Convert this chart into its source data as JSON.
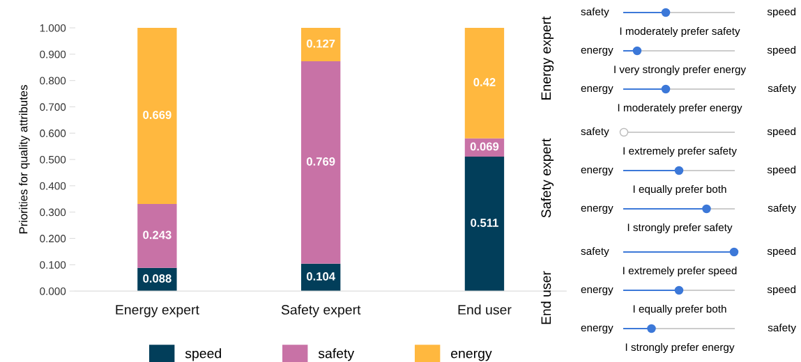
{
  "chart_data": [
    {
      "type": "bar",
      "stacked": true,
      "ylabel": "Priorities for quality attributes",
      "categories": [
        "Energy expert",
        "Safety expert",
        "End user"
      ],
      "series": [
        {
          "name": "speed",
          "color": "#023e5a",
          "values": [
            0.088,
            0.104,
            0.511
          ]
        },
        {
          "name": "safety",
          "color": "#c872a6",
          "values": [
            0.243,
            0.769,
            0.069
          ]
        },
        {
          "name": "energy",
          "color": "#ffb83f",
          "values": [
            0.669,
            0.127,
            0.42
          ]
        }
      ],
      "ylim": [
        0,
        1
      ],
      "yticks": [
        {
          "value": 0,
          "label": "0.000"
        },
        {
          "value": 0.1,
          "label": "0.100"
        },
        {
          "value": 0.2,
          "label": "0.200"
        },
        {
          "value": 0.3,
          "label": "0.300"
        },
        {
          "value": 0.4,
          "label": "0.400"
        },
        {
          "value": 0.5,
          "label": "0.500"
        },
        {
          "value": 0.6,
          "label": "0.600"
        },
        {
          "value": 0.7,
          "label": "0.700"
        },
        {
          "value": 0.8,
          "label": "0.800"
        },
        {
          "value": 0.9,
          "label": "0.900"
        },
        {
          "value": 1,
          "label": "1.000"
        }
      ],
      "data_labels": true,
      "grid": false,
      "legend": "bottom"
    },
    {
      "type": "other",
      "annotations": [
        "Energy expert",
        "safety",
        "speed",
        "I moderately prefer safety",
        "energy",
        "speed",
        "I very strongly prefer energy",
        "energy",
        "safety",
        "I moderately prefer energy",
        "Safety expert",
        "safety",
        "speed",
        "I extremely prefer safety",
        "energy",
        "speed",
        "I equally prefer both",
        "energy",
        "safety",
        "I strongly prefer safety",
        "End user",
        "safety",
        "speed",
        "I extremely prefer speed",
        "energy",
        "speed",
        "I equally prefer both",
        "energy",
        "safety",
        "I strongly prefer energy"
      ]
    }
  ]
}
